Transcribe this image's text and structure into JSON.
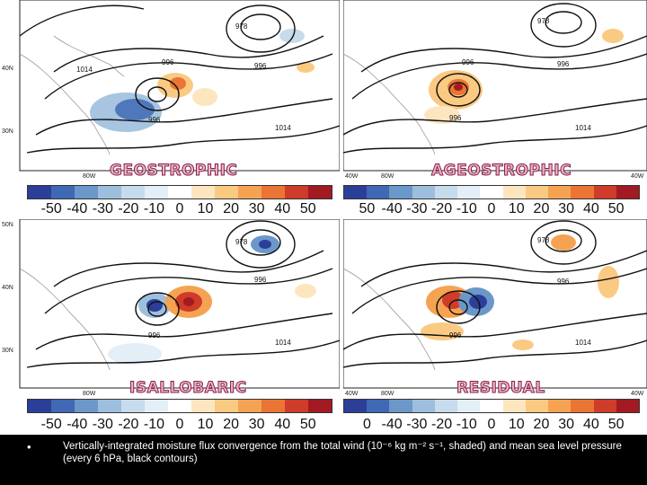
{
  "colorbar": {
    "colors": [
      "#2b3f99",
      "#3f69b4",
      "#6b98c9",
      "#9dbfdd",
      "#c6dbeb",
      "#e4eef6",
      "#ffffff",
      "#fde6bf",
      "#fbca82",
      "#f5a352",
      "#ea7535",
      "#cf3c2a",
      "#a21a22"
    ],
    "labels": [
      "-50",
      "-40",
      "-30",
      "-20",
      "-10",
      "0",
      "10",
      "20",
      "30",
      "40",
      "50"
    ],
    "labels_cut": [
      "50",
      "-40",
      "-30",
      "-20",
      "-10",
      "0",
      "10",
      "20",
      "30",
      "40",
      "50"
    ],
    "labels_cut_br": [
      "0",
      "-40",
      "-30",
      "-20",
      "-10",
      "0",
      "10",
      "20",
      "30",
      "40",
      "50"
    ]
  },
  "panels": [
    {
      "title": "GEOSTROPHIC",
      "lat_labels": [
        "40N",
        "30N"
      ],
      "lon_labels": [
        "80W"
      ]
    },
    {
      "title": "AGEOSTROPHIC",
      "lat_labels": [],
      "lon_labels": [
        "40W",
        "80W"
      ]
    },
    {
      "title": "ISALLOBARIC",
      "lat_labels": [
        "50N",
        "40N",
        "30N"
      ],
      "lon_labels": [
        "80W"
      ]
    },
    {
      "title": "RESIDUAL",
      "lat_labels": [],
      "lon_labels": [
        "40W",
        "80W",
        "40W"
      ]
    }
  ],
  "contour_labels": [
    "978",
    "996",
    "996",
    "1014",
    "996",
    "1014",
    "1014"
  ],
  "caption": {
    "bullet": "•",
    "text": "Vertically-integrated moisture flux convergence from the total wind (10⁻⁶ kg m⁻² s⁻¹, shaded) and mean sea level pressure (every 6 hPa, black contours)"
  }
}
